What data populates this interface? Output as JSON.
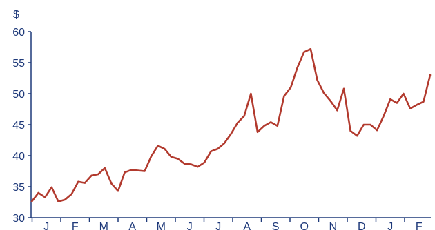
{
  "chart_data": {
    "type": "line",
    "ylabel": "$",
    "ylim": [
      30,
      60
    ],
    "yticks": [
      30,
      35,
      40,
      45,
      50,
      55,
      60
    ],
    "month_labels": [
      "J",
      "F",
      "M",
      "A",
      "M",
      "J",
      "J",
      "A",
      "S",
      "O",
      "N",
      "D",
      "J",
      "F"
    ],
    "grid": false,
    "colors": {
      "axis": "#1f3a7a",
      "series": "#b23a2e"
    },
    "series": [
      {
        "values": [
          32.6,
          34.0,
          33.3,
          34.9,
          32.6,
          32.9,
          33.8,
          35.8,
          35.6,
          36.8,
          37.0,
          38.0,
          35.5,
          34.3,
          37.3,
          37.7,
          37.6,
          37.5,
          39.9,
          41.6,
          41.1,
          39.8,
          39.5,
          38.7,
          38.6,
          38.2,
          38.9,
          40.7,
          41.1,
          42.0,
          43.5,
          45.3,
          46.4,
          50.0,
          43.8,
          44.8,
          45.4,
          44.8,
          49.6,
          51.0,
          54.2,
          56.7,
          57.2,
          52.2,
          50.1,
          48.8,
          47.3,
          50.8,
          44.0,
          43.2,
          45.0,
          45.0,
          44.1,
          46.4,
          49.1,
          48.5,
          50.0,
          47.6,
          48.2,
          48.7,
          53.0
        ]
      }
    ]
  }
}
